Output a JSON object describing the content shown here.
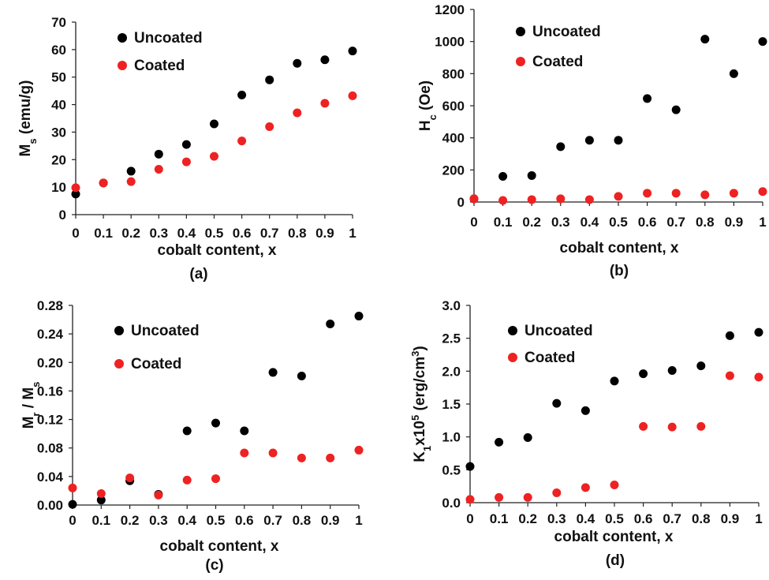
{
  "chart_data": [
    {
      "type": "scatter",
      "caption": "(a)",
      "xlabel": "cobalt content, x",
      "ylabel_main": "M",
      "ylabel_sub": "s",
      "ylabel_tail": " (emu/g)",
      "xlim": [
        0,
        1
      ],
      "ylim": [
        0,
        70
      ],
      "x_ticks": [
        "0",
        "0.1",
        "0.2",
        "0.3",
        "0.4",
        "0.5",
        "0.6",
        "0.7",
        "0.8",
        "0.9",
        "1"
      ],
      "y_ticks": [
        "0",
        "10",
        "20",
        "30",
        "40",
        "50",
        "60",
        "70"
      ],
      "legend": [
        "Uncoated",
        "Coated"
      ],
      "x": [
        0,
        0.1,
        0.2,
        0.3,
        0.4,
        0.5,
        0.6,
        0.7,
        0.8,
        0.9,
        1
      ],
      "series": [
        {
          "name": "Uncoated",
          "color": "#000000",
          "values": [
            7.5,
            11.5,
            15.8,
            22.0,
            25.5,
            33.0,
            43.5,
            49.0,
            55.0,
            56.3,
            59.5
          ]
        },
        {
          "name": "Coated",
          "color": "#ee2222",
          "values": [
            9.8,
            11.5,
            12.0,
            16.5,
            19.2,
            21.2,
            26.8,
            32.0,
            37.0,
            40.5,
            43.2
          ]
        }
      ]
    },
    {
      "type": "scatter",
      "caption": "(b)",
      "xlabel": "cobalt content, x",
      "ylabel_main": "H",
      "ylabel_sub": "c",
      "ylabel_tail": " (Oe)",
      "xlim": [
        0,
        1
      ],
      "ylim": [
        0,
        1200
      ],
      "x_ticks": [
        "0",
        "0.1",
        "0.2",
        "0.3",
        "0.4",
        "0.5",
        "0.6",
        "0.7",
        "0.8",
        "0.9",
        "1"
      ],
      "y_ticks": [
        "0",
        "200",
        "400",
        "600",
        "800",
        "1000",
        "1200"
      ],
      "legend": [
        "Uncoated",
        "Coated"
      ],
      "x": [
        0,
        0.1,
        0.2,
        0.3,
        0.4,
        0.5,
        0.6,
        0.7,
        0.8,
        0.9,
        1
      ],
      "series": [
        {
          "name": "Uncoated",
          "color": "#000000",
          "values": [
            20,
            160,
            165,
            345,
            385,
            385,
            645,
            575,
            1015,
            800,
            1000
          ]
        },
        {
          "name": "Coated",
          "color": "#ee2222",
          "values": [
            20,
            10,
            15,
            20,
            15,
            35,
            55,
            55,
            45,
            55,
            65
          ]
        }
      ]
    },
    {
      "type": "scatter",
      "caption": "(c)",
      "xlabel": "cobalt content, x",
      "ylabel_main": "M",
      "ylabel_sub": "r",
      "ylabel_tail": " / M",
      "ylabel_sub2": "s",
      "xlim": [
        0,
        1
      ],
      "ylim": [
        0,
        0.28
      ],
      "x_ticks": [
        "0",
        "0.1",
        "0.2",
        "0.3",
        "0.4",
        "0.5",
        "0.6",
        "0.7",
        "0.8",
        "0.9",
        "1"
      ],
      "y_ticks": [
        "0.00",
        "0.04",
        "0.08",
        "0.12",
        "0.16",
        "0.20",
        "0.24",
        "0.28"
      ],
      "legend": [
        "Uncoated",
        "Coated"
      ],
      "x": [
        0,
        0.1,
        0.2,
        0.3,
        0.4,
        0.5,
        0.6,
        0.7,
        0.8,
        0.9,
        1
      ],
      "series": [
        {
          "name": "Uncoated",
          "color": "#000000",
          "values": [
            0.001,
            0.007,
            0.034,
            0.015,
            0.104,
            0.115,
            0.104,
            0.186,
            0.181,
            0.254,
            0.265
          ]
        },
        {
          "name": "Coated",
          "color": "#ee2222",
          "values": [
            0.024,
            0.016,
            0.038,
            0.014,
            0.035,
            0.037,
            0.073,
            0.073,
            0.066,
            0.066,
            0.077
          ]
        }
      ]
    },
    {
      "type": "scatter",
      "caption": "(d)",
      "xlabel": "cobalt content, x",
      "ylabel_main": "K",
      "ylabel_sub": "1",
      "ylabel_tail": "x10",
      "ylabel_sup": "5",
      "ylabel_tail2": " (erg/cm",
      "ylabel_sup2": "3",
      "ylabel_tail3": ")",
      "xlim": [
        0,
        1
      ],
      "ylim": [
        0,
        3
      ],
      "x_ticks": [
        "0",
        "0.1",
        "0.2",
        "0.3",
        "0.4",
        "0.5",
        "0.6",
        "0.7",
        "0.8",
        "0.9",
        "1"
      ],
      "y_ticks": [
        "0.0",
        "0.5",
        "1.0",
        "1.5",
        "2.0",
        "2.5",
        "3.0"
      ],
      "legend": [
        "Uncoated",
        "Coated"
      ],
      "x": [
        0,
        0.1,
        0.2,
        0.3,
        0.4,
        0.5,
        0.6,
        0.7,
        0.8,
        0.9,
        1
      ],
      "series": [
        {
          "name": "Uncoated",
          "color": "#000000",
          "values": [
            0.55,
            0.92,
            0.99,
            1.51,
            1.4,
            1.85,
            1.96,
            2.01,
            2.08,
            2.54,
            2.59
          ]
        },
        {
          "name": "Coated",
          "color": "#ee2222",
          "values": [
            0.05,
            0.08,
            0.08,
            0.15,
            0.23,
            0.27,
            1.16,
            1.15,
            1.16,
            1.93,
            1.91
          ]
        }
      ]
    }
  ]
}
